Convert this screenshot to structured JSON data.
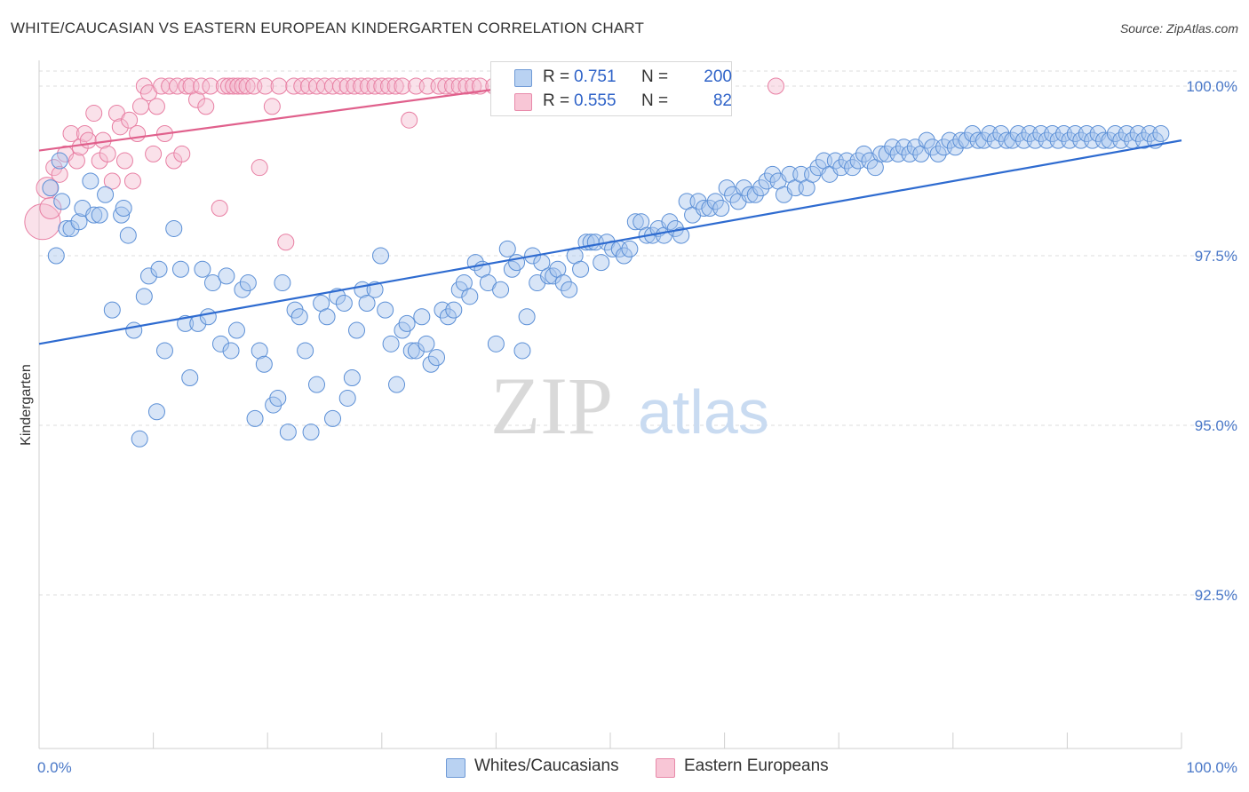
{
  "title": "WHITE/CAUCASIAN VS EASTERN EUROPEAN KINDERGARTEN CORRELATION CHART",
  "source": "Source: ZipAtlas.com",
  "watermark": {
    "zip": "ZIP",
    "atlas": "atlas"
  },
  "legend": {
    "series1": {
      "r_label": "R = ",
      "r_value": "0.751",
      "n_label": "N = ",
      "n_value": "200"
    },
    "series2": {
      "r_label": "R = ",
      "r_value": "0.555",
      "n_label": "N = ",
      "n_value": "82"
    }
  },
  "colors": {
    "blue": "#5b8fd6",
    "blue_fill": "#a9c6ee",
    "blue_line": "#2e6bd0",
    "pink": "#e87fa3",
    "pink_fill": "#f5bcd0",
    "pink_line": "#e0608c",
    "tick_text": "#4a78c8"
  },
  "chart_data": {
    "type": "scatter",
    "title": "WHITE/CAUCASIAN VS EASTERN EUROPEAN KINDERGARTEN CORRELATION CHART",
    "xlabel": "",
    "ylabel": "Kindergarten",
    "xlim": [
      0,
      100
    ],
    "ylim": [
      90.0,
      100.5
    ],
    "x_tick_labels": [
      "0.0%",
      "100.0%"
    ],
    "y_ticks": [
      92.5,
      95.0,
      97.5,
      100.0
    ],
    "y_tick_labels": [
      "92.5%",
      "95.0%",
      "97.5%",
      "100.0%"
    ],
    "grid": true,
    "series": [
      {
        "name": "Whites/Caucasians",
        "r": 0.751,
        "n": 200,
        "trend": {
          "x": [
            0,
            100
          ],
          "y": [
            96.2,
            99.2
          ]
        },
        "points": [
          [
            1.0,
            98.5
          ],
          [
            1.5,
            97.5
          ],
          [
            1.8,
            98.9
          ],
          [
            2.0,
            98.3
          ],
          [
            2.4,
            97.9
          ],
          [
            2.8,
            97.9
          ],
          [
            3.5,
            98.0
          ],
          [
            3.8,
            98.2
          ],
          [
            4.5,
            98.6
          ],
          [
            4.8,
            98.1
          ],
          [
            5.3,
            98.1
          ],
          [
            5.8,
            98.4
          ],
          [
            6.4,
            96.7
          ],
          [
            7.2,
            98.1
          ],
          [
            7.4,
            98.2
          ],
          [
            7.8,
            97.8
          ],
          [
            8.3,
            96.4
          ],
          [
            8.8,
            94.8
          ],
          [
            9.2,
            96.9
          ],
          [
            9.6,
            97.2
          ],
          [
            10.3,
            95.2
          ],
          [
            10.5,
            97.3
          ],
          [
            11.0,
            96.1
          ],
          [
            11.8,
            97.9
          ],
          [
            12.4,
            97.3
          ],
          [
            12.8,
            96.5
          ],
          [
            13.2,
            95.7
          ],
          [
            13.9,
            96.5
          ],
          [
            14.3,
            97.3
          ],
          [
            14.8,
            96.6
          ],
          [
            15.2,
            97.1
          ],
          [
            15.9,
            96.2
          ],
          [
            16.4,
            97.2
          ],
          [
            16.8,
            96.1
          ],
          [
            17.3,
            96.4
          ],
          [
            17.8,
            97.0
          ],
          [
            18.3,
            97.1
          ],
          [
            18.9,
            95.1
          ],
          [
            19.3,
            96.1
          ],
          [
            19.7,
            95.9
          ],
          [
            20.5,
            95.3
          ],
          [
            20.9,
            95.4
          ],
          [
            21.3,
            97.1
          ],
          [
            21.8,
            94.9
          ],
          [
            22.4,
            96.7
          ],
          [
            22.8,
            96.6
          ],
          [
            23.3,
            96.1
          ],
          [
            23.8,
            94.9
          ],
          [
            24.3,
            95.6
          ],
          [
            24.7,
            96.8
          ],
          [
            25.2,
            96.6
          ],
          [
            25.7,
            95.1
          ],
          [
            26.1,
            96.9
          ],
          [
            26.7,
            96.8
          ],
          [
            27.0,
            95.4
          ],
          [
            27.4,
            95.7
          ],
          [
            27.8,
            96.4
          ],
          [
            28.3,
            97.0
          ],
          [
            28.7,
            96.8
          ],
          [
            29.4,
            97.0
          ],
          [
            29.9,
            97.5
          ],
          [
            30.3,
            96.7
          ],
          [
            30.8,
            96.2
          ],
          [
            31.3,
            95.6
          ],
          [
            31.8,
            96.4
          ],
          [
            32.2,
            96.5
          ],
          [
            32.6,
            96.1
          ],
          [
            33.0,
            96.1
          ],
          [
            33.5,
            96.6
          ],
          [
            33.9,
            96.2
          ],
          [
            34.3,
            95.9
          ],
          [
            34.8,
            96.0
          ],
          [
            35.3,
            96.7
          ],
          [
            35.8,
            96.6
          ],
          [
            36.3,
            96.7
          ],
          [
            36.8,
            97.0
          ],
          [
            37.2,
            97.1
          ],
          [
            37.7,
            96.9
          ],
          [
            38.2,
            97.4
          ],
          [
            38.8,
            97.3
          ],
          [
            39.3,
            97.1
          ],
          [
            40.0,
            96.2
          ],
          [
            40.4,
            97.0
          ],
          [
            41.0,
            97.6
          ],
          [
            41.4,
            97.3
          ],
          [
            41.8,
            97.4
          ],
          [
            42.3,
            96.1
          ],
          [
            42.7,
            96.6
          ],
          [
            43.2,
            97.5
          ],
          [
            43.6,
            97.1
          ],
          [
            44.0,
            97.4
          ],
          [
            44.6,
            97.2
          ],
          [
            45.0,
            97.2
          ],
          [
            45.4,
            97.3
          ],
          [
            45.9,
            97.1
          ],
          [
            46.4,
            97.0
          ],
          [
            46.9,
            97.5
          ],
          [
            47.4,
            97.3
          ],
          [
            47.9,
            97.7
          ],
          [
            48.3,
            97.7
          ],
          [
            48.7,
            97.7
          ],
          [
            49.2,
            97.4
          ],
          [
            49.7,
            97.7
          ],
          [
            50.2,
            97.6
          ],
          [
            50.8,
            97.6
          ],
          [
            51.2,
            97.5
          ],
          [
            51.7,
            97.6
          ],
          [
            52.2,
            98.0
          ],
          [
            52.7,
            98.0
          ],
          [
            53.2,
            97.8
          ],
          [
            53.7,
            97.8
          ],
          [
            54.2,
            97.9
          ],
          [
            54.7,
            97.8
          ],
          [
            55.2,
            98.0
          ],
          [
            55.7,
            97.9
          ],
          [
            56.2,
            97.8
          ],
          [
            56.7,
            98.3
          ],
          [
            57.2,
            98.1
          ],
          [
            57.7,
            98.3
          ],
          [
            58.2,
            98.2
          ],
          [
            58.7,
            98.2
          ],
          [
            59.2,
            98.3
          ],
          [
            59.7,
            98.2
          ],
          [
            60.2,
            98.5
          ],
          [
            60.7,
            98.4
          ],
          [
            61.2,
            98.3
          ],
          [
            61.7,
            98.5
          ],
          [
            62.2,
            98.4
          ],
          [
            62.7,
            98.4
          ],
          [
            63.2,
            98.5
          ],
          [
            63.7,
            98.6
          ],
          [
            64.2,
            98.7
          ],
          [
            64.7,
            98.6
          ],
          [
            65.2,
            98.4
          ],
          [
            65.7,
            98.7
          ],
          [
            66.2,
            98.5
          ],
          [
            66.7,
            98.7
          ],
          [
            67.2,
            98.5
          ],
          [
            67.7,
            98.7
          ],
          [
            68.2,
            98.8
          ],
          [
            68.7,
            98.9
          ],
          [
            69.2,
            98.7
          ],
          [
            69.7,
            98.9
          ],
          [
            70.2,
            98.8
          ],
          [
            70.7,
            98.9
          ],
          [
            71.2,
            98.8
          ],
          [
            71.7,
            98.9
          ],
          [
            72.2,
            99.0
          ],
          [
            72.7,
            98.9
          ],
          [
            73.2,
            98.8
          ],
          [
            73.7,
            99.0
          ],
          [
            74.2,
            99.0
          ],
          [
            74.7,
            99.1
          ],
          [
            75.2,
            99.0
          ],
          [
            75.7,
            99.1
          ],
          [
            76.2,
            99.0
          ],
          [
            76.7,
            99.1
          ],
          [
            77.2,
            99.0
          ],
          [
            77.7,
            99.2
          ],
          [
            78.2,
            99.1
          ],
          [
            78.7,
            99.0
          ],
          [
            79.2,
            99.1
          ],
          [
            79.7,
            99.2
          ],
          [
            80.2,
            99.1
          ],
          [
            80.7,
            99.2
          ],
          [
            81.2,
            99.2
          ],
          [
            81.7,
            99.3
          ],
          [
            82.2,
            99.2
          ],
          [
            82.7,
            99.2
          ],
          [
            83.2,
            99.3
          ],
          [
            83.7,
            99.2
          ],
          [
            84.2,
            99.3
          ],
          [
            84.7,
            99.2
          ],
          [
            85.2,
            99.2
          ],
          [
            85.7,
            99.3
          ],
          [
            86.2,
            99.2
          ],
          [
            86.7,
            99.3
          ],
          [
            87.2,
            99.2
          ],
          [
            87.7,
            99.3
          ],
          [
            88.2,
            99.2
          ],
          [
            88.7,
            99.3
          ],
          [
            89.2,
            99.2
          ],
          [
            89.7,
            99.3
          ],
          [
            90.2,
            99.2
          ],
          [
            90.7,
            99.3
          ],
          [
            91.2,
            99.2
          ],
          [
            91.7,
            99.3
          ],
          [
            92.2,
            99.2
          ],
          [
            92.7,
            99.3
          ],
          [
            93.2,
            99.2
          ],
          [
            93.7,
            99.2
          ],
          [
            94.2,
            99.3
          ],
          [
            94.7,
            99.2
          ],
          [
            95.2,
            99.3
          ],
          [
            95.7,
            99.2
          ],
          [
            96.2,
            99.3
          ],
          [
            96.7,
            99.2
          ],
          [
            97.2,
            99.3
          ],
          [
            97.7,
            99.2
          ],
          [
            98.2,
            99.3
          ]
        ]
      },
      {
        "name": "Eastern Europeans",
        "r": 0.555,
        "n": 82,
        "trend": {
          "x": [
            0,
            42
          ],
          "y": [
            99.05,
            100.0
          ]
        },
        "points": [
          [
            0.3,
            98.0
          ],
          [
            0.7,
            98.5
          ],
          [
            1.0,
            98.2
          ],
          [
            1.3,
            98.8
          ],
          [
            1.8,
            98.7
          ],
          [
            2.3,
            99.0
          ],
          [
            2.8,
            99.3
          ],
          [
            3.3,
            98.9
          ],
          [
            3.6,
            99.1
          ],
          [
            4.0,
            99.3
          ],
          [
            4.3,
            99.2
          ],
          [
            4.8,
            99.6
          ],
          [
            5.3,
            98.9
          ],
          [
            5.6,
            99.2
          ],
          [
            6.0,
            99.0
          ],
          [
            6.4,
            98.6
          ],
          [
            6.8,
            99.6
          ],
          [
            7.1,
            99.4
          ],
          [
            7.5,
            98.9
          ],
          [
            7.9,
            99.5
          ],
          [
            8.2,
            98.6
          ],
          [
            8.6,
            99.3
          ],
          [
            8.9,
            99.7
          ],
          [
            9.2,
            100.0
          ],
          [
            9.6,
            99.9
          ],
          [
            10.0,
            99.0
          ],
          [
            10.3,
            99.7
          ],
          [
            10.7,
            100.0
          ],
          [
            11.0,
            99.3
          ],
          [
            11.4,
            100.0
          ],
          [
            11.8,
            98.9
          ],
          [
            12.1,
            100.0
          ],
          [
            12.5,
            99.0
          ],
          [
            12.9,
            100.0
          ],
          [
            13.3,
            100.0
          ],
          [
            13.8,
            99.8
          ],
          [
            14.2,
            100.0
          ],
          [
            14.6,
            99.7
          ],
          [
            15.0,
            100.0
          ],
          [
            15.8,
            98.2
          ],
          [
            16.2,
            100.0
          ],
          [
            16.6,
            100.0
          ],
          [
            17.0,
            100.0
          ],
          [
            17.4,
            100.0
          ],
          [
            17.8,
            100.0
          ],
          [
            18.2,
            100.0
          ],
          [
            18.8,
            100.0
          ],
          [
            19.3,
            98.8
          ],
          [
            19.8,
            100.0
          ],
          [
            20.4,
            99.7
          ],
          [
            21.0,
            100.0
          ],
          [
            21.6,
            97.7
          ],
          [
            22.3,
            100.0
          ],
          [
            23.0,
            100.0
          ],
          [
            23.6,
            100.0
          ],
          [
            24.3,
            100.0
          ],
          [
            25.0,
            100.0
          ],
          [
            25.7,
            100.0
          ],
          [
            26.4,
            100.0
          ],
          [
            27.0,
            100.0
          ],
          [
            27.6,
            100.0
          ],
          [
            28.2,
            100.0
          ],
          [
            28.8,
            100.0
          ],
          [
            29.4,
            100.0
          ],
          [
            30.0,
            100.0
          ],
          [
            30.6,
            100.0
          ],
          [
            31.2,
            100.0
          ],
          [
            31.8,
            100.0
          ],
          [
            32.4,
            99.5
          ],
          [
            33.0,
            100.0
          ],
          [
            34.0,
            100.0
          ],
          [
            35.0,
            100.0
          ],
          [
            35.6,
            100.0
          ],
          [
            36.2,
            100.0
          ],
          [
            36.8,
            100.0
          ],
          [
            37.4,
            100.0
          ],
          [
            38.0,
            100.0
          ],
          [
            38.6,
            100.0
          ],
          [
            39.8,
            100.0
          ],
          [
            40.6,
            100.0
          ],
          [
            42.0,
            100.0
          ],
          [
            64.5,
            100.0
          ]
        ]
      }
    ]
  },
  "bottom_legend": {
    "series1": "Whites/Caucasians",
    "series2": "Eastern Europeans"
  }
}
